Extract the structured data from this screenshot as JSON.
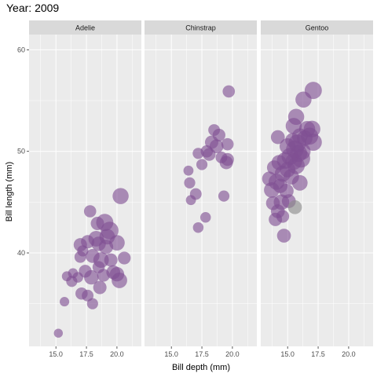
{
  "chart_data": {
    "type": "scatter",
    "title": "Year: 2009",
    "xlabel": "Bill depth (mm)",
    "ylabel": "Bill length (mm)",
    "xlim": [
      12.8,
      22.0
    ],
    "ylim": [
      30.8,
      61.5
    ],
    "xticks": [
      15.0,
      17.5,
      20.0
    ],
    "xtick_labels": [
      "15.0",
      "17.5",
      "20.0"
    ],
    "yticks": [
      40,
      50,
      60
    ],
    "ytick_labels": [
      "40",
      "50",
      "60"
    ],
    "grid": true,
    "legend": "none",
    "size_encoding": "body mass (no legend shown)",
    "facets": [
      {
        "name": "Adelie",
        "color": "#7f4f93",
        "points": [
          {
            "x": 15.2,
            "y": 32.1,
            "s": 0.1
          },
          {
            "x": 15.7,
            "y": 35.2,
            "s": 0.15
          },
          {
            "x": 15.9,
            "y": 37.7,
            "s": 0.2
          },
          {
            "x": 16.3,
            "y": 37.2,
            "s": 0.3
          },
          {
            "x": 16.4,
            "y": 38.0,
            "s": 0.2
          },
          {
            "x": 16.8,
            "y": 37.6,
            "s": 0.25
          },
          {
            "x": 17.0,
            "y": 39.6,
            "s": 0.35
          },
          {
            "x": 17.1,
            "y": 36.0,
            "s": 0.4
          },
          {
            "x": 17.0,
            "y": 40.8,
            "s": 0.5
          },
          {
            "x": 17.2,
            "y": 40.2,
            "s": 0.3
          },
          {
            "x": 17.4,
            "y": 38.2,
            "s": 0.45
          },
          {
            "x": 17.6,
            "y": 41.1,
            "s": 0.5
          },
          {
            "x": 17.6,
            "y": 35.8,
            "s": 0.35
          },
          {
            "x": 17.8,
            "y": 44.1,
            "s": 0.4
          },
          {
            "x": 17.9,
            "y": 37.6,
            "s": 0.6
          },
          {
            "x": 18.0,
            "y": 39.7,
            "s": 0.55
          },
          {
            "x": 18.0,
            "y": 35.0,
            "s": 0.3
          },
          {
            "x": 18.3,
            "y": 41.4,
            "s": 0.7
          },
          {
            "x": 18.4,
            "y": 42.9,
            "s": 0.5
          },
          {
            "x": 18.5,
            "y": 38.6,
            "s": 0.4
          },
          {
            "x": 18.5,
            "y": 40.9,
            "s": 0.6
          },
          {
            "x": 18.6,
            "y": 36.6,
            "s": 0.5
          },
          {
            "x": 18.7,
            "y": 39.3,
            "s": 0.7
          },
          {
            "x": 18.9,
            "y": 37.8,
            "s": 0.45
          },
          {
            "x": 19.0,
            "y": 43.0,
            "s": 0.85
          },
          {
            "x": 19.1,
            "y": 40.6,
            "s": 0.6
          },
          {
            "x": 19.2,
            "y": 41.6,
            "s": 0.7
          },
          {
            "x": 19.4,
            "y": 42.2,
            "s": 0.9
          },
          {
            "x": 19.5,
            "y": 39.3,
            "s": 0.5
          },
          {
            "x": 19.7,
            "y": 38.1,
            "s": 0.55
          },
          {
            "x": 20.0,
            "y": 37.9,
            "s": 0.6
          },
          {
            "x": 20.0,
            "y": 41.0,
            "s": 0.7
          },
          {
            "x": 20.2,
            "y": 37.3,
            "s": 0.7
          },
          {
            "x": 20.3,
            "y": 45.6,
            "s": 0.75
          },
          {
            "x": 20.6,
            "y": 39.5,
            "s": 0.45
          }
        ]
      },
      {
        "name": "Chinstrap",
        "color": "#7f4f93",
        "points": [
          {
            "x": 16.4,
            "y": 48.1,
            "s": 0.2
          },
          {
            "x": 16.5,
            "y": 46.9,
            "s": 0.3
          },
          {
            "x": 16.6,
            "y": 45.2,
            "s": 0.2
          },
          {
            "x": 17.0,
            "y": 45.8,
            "s": 0.35
          },
          {
            "x": 17.2,
            "y": 42.5,
            "s": 0.25
          },
          {
            "x": 17.2,
            "y": 49.8,
            "s": 0.3
          },
          {
            "x": 17.5,
            "y": 48.7,
            "s": 0.3
          },
          {
            "x": 17.8,
            "y": 43.5,
            "s": 0.25
          },
          {
            "x": 17.9,
            "y": 50.0,
            "s": 0.4
          },
          {
            "x": 18.1,
            "y": 49.7,
            "s": 0.45
          },
          {
            "x": 18.3,
            "y": 50.9,
            "s": 0.5
          },
          {
            "x": 18.5,
            "y": 52.1,
            "s": 0.35
          },
          {
            "x": 18.7,
            "y": 50.5,
            "s": 0.55
          },
          {
            "x": 18.9,
            "y": 51.6,
            "s": 0.45
          },
          {
            "x": 19.1,
            "y": 49.4,
            "s": 0.35
          },
          {
            "x": 19.3,
            "y": 45.6,
            "s": 0.3
          },
          {
            "x": 19.5,
            "y": 48.9,
            "s": 0.5
          },
          {
            "x": 19.6,
            "y": 50.7,
            "s": 0.4
          },
          {
            "x": 19.6,
            "y": 49.2,
            "s": 0.45
          },
          {
            "x": 19.7,
            "y": 55.9,
            "s": 0.4
          }
        ]
      },
      {
        "name": "Gentoo",
        "color": "#7f4f93",
        "points": [
          {
            "x": 13.5,
            "y": 47.3,
            "s": 0.6
          },
          {
            "x": 13.7,
            "y": 46.2,
            "s": 0.7
          },
          {
            "x": 13.8,
            "y": 44.9,
            "s": 0.55
          },
          {
            "x": 13.9,
            "y": 48.4,
            "s": 0.6
          },
          {
            "x": 14.0,
            "y": 43.3,
            "s": 0.5
          },
          {
            "x": 14.1,
            "y": 47.0,
            "s": 0.75
          },
          {
            "x": 14.2,
            "y": 44.1,
            "s": 0.55
          },
          {
            "x": 14.2,
            "y": 51.4,
            "s": 0.55
          },
          {
            "x": 14.3,
            "y": 48.9,
            "s": 0.65
          },
          {
            "x": 14.4,
            "y": 46.6,
            "s": 0.6
          },
          {
            "x": 14.5,
            "y": 45.0,
            "s": 0.7
          },
          {
            "x": 14.6,
            "y": 43.6,
            "s": 0.45
          },
          {
            "x": 14.6,
            "y": 47.8,
            "s": 0.75
          },
          {
            "x": 14.7,
            "y": 41.7,
            "s": 0.55
          },
          {
            "x": 14.8,
            "y": 49.1,
            "s": 0.8
          },
          {
            "x": 14.9,
            "y": 46.1,
            "s": 0.6
          },
          {
            "x": 15.0,
            "y": 48.2,
            "s": 0.7
          },
          {
            "x": 15.0,
            "y": 50.5,
            "s": 0.75
          },
          {
            "x": 15.1,
            "y": 45.1,
            "s": 0.55
          },
          {
            "x": 15.2,
            "y": 49.5,
            "s": 0.85
          },
          {
            "x": 15.3,
            "y": 47.5,
            "s": 0.7
          },
          {
            "x": 15.4,
            "y": 51.1,
            "s": 0.6
          },
          {
            "x": 15.5,
            "y": 49.0,
            "s": 0.8
          },
          {
            "x": 15.5,
            "y": 52.5,
            "s": 0.75
          },
          {
            "x": 15.6,
            "y": 50.2,
            "s": 0.9
          },
          {
            "x": 15.6,
            "y": 44.5,
            "s": 0.55,
            "color": "#8b8b8b"
          },
          {
            "x": 15.7,
            "y": 53.4,
            "s": 0.75
          },
          {
            "x": 15.7,
            "y": 48.6,
            "s": 0.85
          },
          {
            "x": 15.8,
            "y": 50.8,
            "s": 0.9
          },
          {
            "x": 15.9,
            "y": 49.8,
            "s": 0.85
          },
          {
            "x": 16.0,
            "y": 46.9,
            "s": 0.7
          },
          {
            "x": 16.0,
            "y": 51.5,
            "s": 0.7
          },
          {
            "x": 16.1,
            "y": 49.3,
            "s": 0.95
          },
          {
            "x": 16.2,
            "y": 50.0,
            "s": 0.8
          },
          {
            "x": 16.3,
            "y": 55.1,
            "s": 0.75
          },
          {
            "x": 16.4,
            "y": 51.3,
            "s": 0.7
          },
          {
            "x": 16.6,
            "y": 52.2,
            "s": 0.75
          },
          {
            "x": 16.8,
            "y": 51.5,
            "s": 0.85
          },
          {
            "x": 17.0,
            "y": 52.2,
            "s": 0.8
          },
          {
            "x": 17.1,
            "y": 50.9,
            "s": 0.85
          },
          {
            "x": 17.1,
            "y": 56.0,
            "s": 0.85
          }
        ]
      }
    ]
  }
}
